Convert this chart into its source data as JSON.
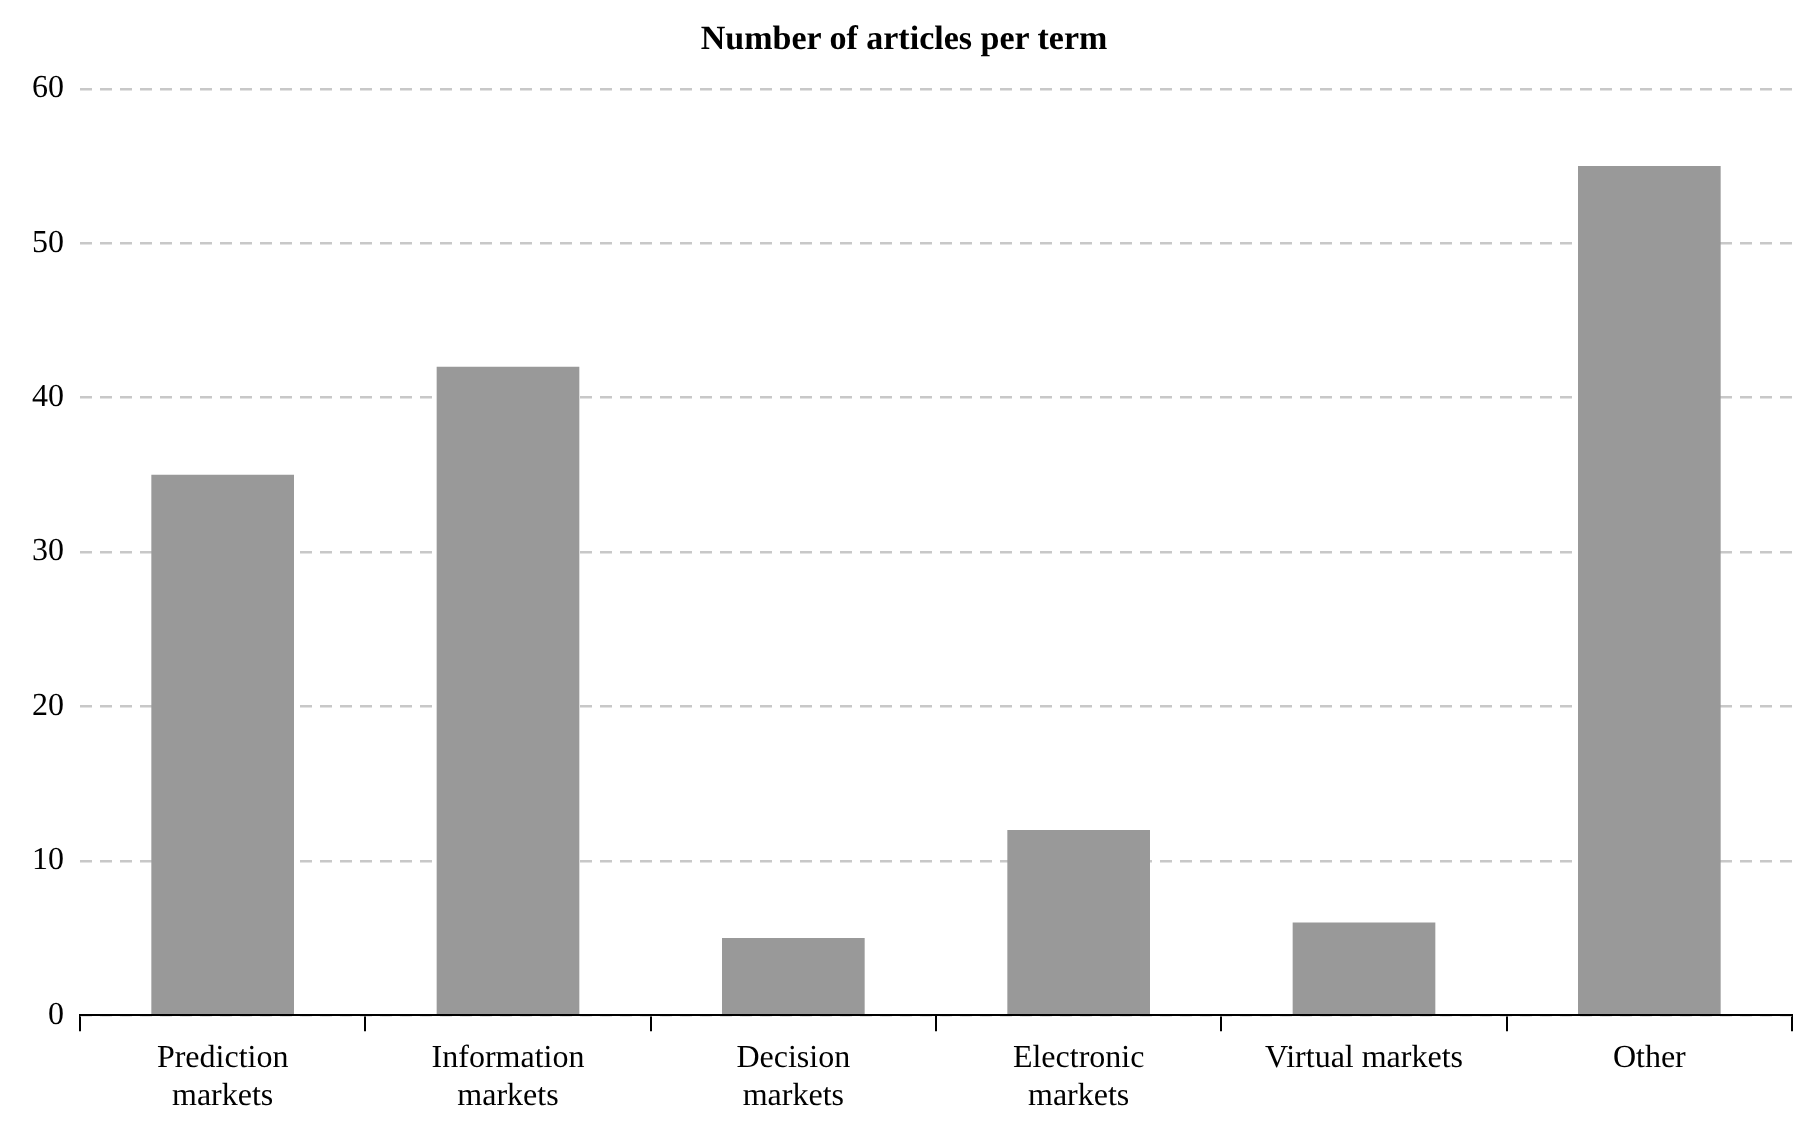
{
  "chart_data": {
    "type": "bar",
    "title": "Number of articles per term",
    "categories": [
      "Prediction markets",
      "Information markets",
      "Decision markets",
      "Electronic markets",
      "Virtual markets",
      "Other"
    ],
    "values": [
      35,
      42,
      5,
      12,
      6,
      55
    ],
    "color": "#999999",
    "ylim": [
      0,
      60
    ],
    "yticks": [
      0,
      10,
      20,
      30,
      40,
      50,
      60
    ],
    "grid": "y",
    "legend": false
  }
}
